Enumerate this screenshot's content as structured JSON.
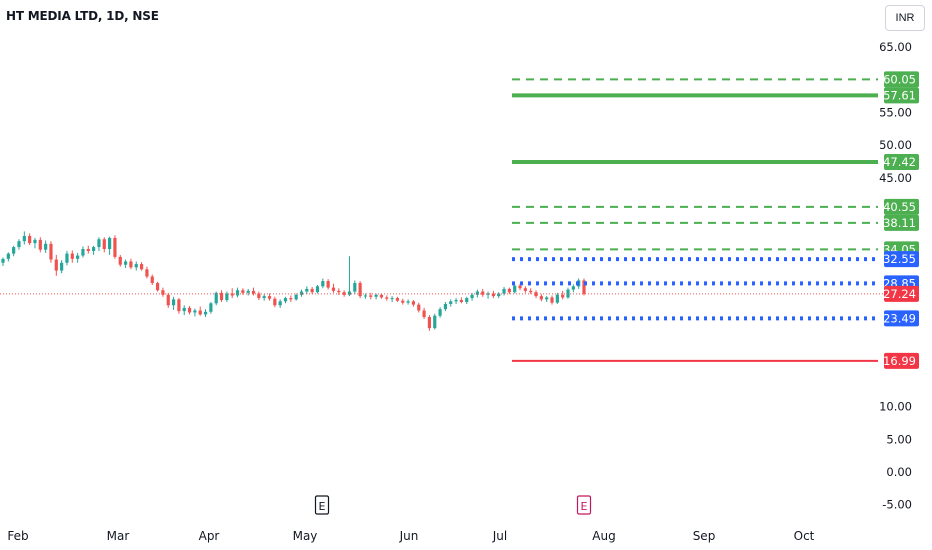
{
  "header": {
    "title": "HT MEDIA LTD, 1D, NSE",
    "currency": "INR"
  },
  "colors": {
    "up": "#26a69a",
    "down": "#ef5350",
    "green": "#4caf50",
    "blue": "#2962ff",
    "red": "#f23645",
    "text": "#131722"
  },
  "chart_data": {
    "type": "candlestick",
    "title": "HT MEDIA LTD, 1D, NSE",
    "ylim": [
      -7,
      68
    ],
    "y_ticks": [
      "65.00",
      "55.00",
      "50.00",
      "45.00",
      "10.00",
      "5.00",
      "0.00",
      "-5.00"
    ],
    "x_ticks": [
      "Feb",
      "Mar",
      "Apr",
      "May",
      "Jun",
      "Jul",
      "Aug",
      "Sep",
      "Oct"
    ],
    "current_price": 27.24,
    "levels": [
      {
        "value": 60.05,
        "label": "60.05",
        "style": "dashed",
        "color": "#4caf50"
      },
      {
        "value": 57.61,
        "label": "57.61",
        "style": "solid",
        "color": "#4caf50"
      },
      {
        "value": 47.42,
        "label": "47.42",
        "style": "solid",
        "color": "#4caf50"
      },
      {
        "value": 40.55,
        "label": "40.55",
        "style": "dashed",
        "color": "#4caf50"
      },
      {
        "value": 38.11,
        "label": "38.11",
        "style": "dashed",
        "color": "#4caf50"
      },
      {
        "value": 34.05,
        "label": "34.05",
        "style": "dashed",
        "color": "#4caf50"
      },
      {
        "value": 32.55,
        "label": "32.55",
        "style": "dotted",
        "color": "#2962ff"
      },
      {
        "value": 28.85,
        "label": "28.85",
        "style": "dotted",
        "color": "#2962ff"
      },
      {
        "value": 23.49,
        "label": "23.49",
        "style": "dotted",
        "color": "#2962ff"
      },
      {
        "value": 16.99,
        "label": "16.99",
        "style": "solid",
        "color": "#f23645"
      }
    ],
    "events": [
      {
        "label": "E",
        "date": "May",
        "color": "#131722"
      },
      {
        "label": "E",
        "date": "Jul",
        "color": "#c2185b"
      }
    ],
    "candles": [
      [
        32.0,
        32.8,
        31.5,
        32.6
      ],
      [
        32.6,
        33.6,
        32.2,
        33.4
      ],
      [
        33.4,
        34.6,
        33.0,
        34.4
      ],
      [
        34.4,
        35.6,
        34.0,
        35.3
      ],
      [
        35.3,
        36.8,
        34.8,
        36.1
      ],
      [
        36.1,
        36.5,
        34.7,
        35.0
      ],
      [
        35.0,
        35.8,
        34.2,
        35.5
      ],
      [
        35.5,
        35.9,
        33.6,
        34.0
      ],
      [
        34.0,
        35.4,
        33.5,
        34.9
      ],
      [
        34.9,
        35.3,
        32.0,
        32.5
      ],
      [
        32.5,
        33.2,
        30.0,
        30.8
      ],
      [
        30.8,
        32.4,
        30.4,
        32.0
      ],
      [
        32.0,
        33.8,
        31.6,
        33.4
      ],
      [
        33.4,
        33.9,
        32.0,
        32.6
      ],
      [
        32.6,
        33.5,
        32.0,
        33.1
      ],
      [
        33.1,
        34.5,
        32.8,
        34.1
      ],
      [
        34.1,
        34.6,
        33.4,
        33.8
      ],
      [
        33.8,
        34.6,
        33.2,
        34.4
      ],
      [
        34.4,
        35.9,
        33.8,
        35.6
      ],
      [
        35.6,
        35.9,
        33.6,
        34.1
      ],
      [
        34.1,
        36.0,
        33.2,
        35.8
      ],
      [
        35.8,
        36.2,
        32.6,
        32.9
      ],
      [
        32.9,
        33.2,
        31.4,
        31.7
      ],
      [
        31.7,
        32.5,
        31.2,
        32.2
      ],
      [
        32.2,
        32.6,
        31.0,
        31.3
      ],
      [
        31.3,
        32.2,
        30.8,
        31.8
      ],
      [
        31.8,
        32.1,
        30.8,
        31.0
      ],
      [
        31.0,
        31.4,
        29.6,
        29.9
      ],
      [
        29.9,
        30.2,
        28.6,
        28.9
      ],
      [
        28.9,
        29.1,
        27.6,
        27.8
      ],
      [
        27.8,
        28.2,
        26.8,
        27.1
      ],
      [
        27.1,
        27.4,
        25.1,
        25.5
      ],
      [
        25.5,
        26.8,
        24.8,
        26.4
      ],
      [
        26.4,
        26.6,
        24.2,
        24.6
      ],
      [
        24.6,
        25.5,
        24.0,
        25.1
      ],
      [
        25.1,
        25.4,
        24.1,
        24.4
      ],
      [
        24.4,
        25.0,
        23.8,
        24.7
      ],
      [
        24.7,
        25.3,
        23.9,
        24.1
      ],
      [
        24.1,
        24.9,
        23.7,
        24.5
      ],
      [
        24.5,
        26.0,
        24.2,
        25.8
      ],
      [
        25.8,
        27.6,
        25.5,
        27.4
      ],
      [
        27.4,
        27.8,
        26.0,
        26.3
      ],
      [
        26.3,
        27.6,
        26.0,
        27.3
      ],
      [
        27.3,
        28.1,
        26.6,
        27.0
      ],
      [
        27.0,
        28.2,
        26.7,
        27.8
      ],
      [
        27.8,
        28.1,
        27.1,
        27.4
      ],
      [
        27.4,
        28.0,
        27.0,
        27.7
      ],
      [
        27.7,
        28.2,
        27.0,
        27.3
      ],
      [
        27.3,
        27.6,
        26.3,
        26.6
      ],
      [
        26.6,
        27.2,
        26.2,
        26.9
      ],
      [
        26.9,
        27.3,
        26.2,
        26.5
      ],
      [
        26.5,
        26.8,
        25.2,
        25.5
      ],
      [
        25.5,
        26.4,
        25.1,
        26.1
      ],
      [
        26.1,
        26.8,
        25.8,
        26.6
      ],
      [
        26.6,
        27.0,
        26.0,
        26.4
      ],
      [
        26.4,
        27.3,
        26.2,
        27.1
      ],
      [
        27.1,
        27.9,
        26.8,
        27.6
      ],
      [
        27.6,
        28.4,
        27.2,
        28.0
      ],
      [
        28.0,
        28.3,
        27.2,
        27.5
      ],
      [
        27.5,
        28.6,
        27.3,
        28.4
      ],
      [
        28.4,
        29.6,
        28.1,
        29.2
      ],
      [
        29.2,
        29.5,
        27.9,
        28.2
      ],
      [
        28.2,
        28.8,
        27.4,
        27.7
      ],
      [
        27.7,
        28.1,
        27.1,
        27.5
      ],
      [
        27.5,
        27.8,
        26.8,
        27.1
      ],
      [
        27.1,
        33.0,
        26.9,
        27.6
      ],
      [
        27.6,
        29.3,
        27.2,
        28.9
      ],
      [
        28.9,
        29.2,
        26.6,
        26.9
      ],
      [
        26.9,
        27.3,
        26.5,
        27.0
      ],
      [
        27.0,
        27.4,
        26.4,
        26.8
      ],
      [
        26.8,
        27.3,
        26.4,
        27.1
      ],
      [
        27.1,
        27.3,
        26.5,
        26.7
      ],
      [
        26.7,
        27.0,
        26.2,
        26.5
      ],
      [
        26.5,
        26.9,
        26.0,
        26.6
      ],
      [
        26.6,
        26.8,
        26.0,
        26.2
      ],
      [
        26.2,
        26.5,
        25.6,
        25.9
      ],
      [
        25.9,
        26.4,
        25.6,
        26.1
      ],
      [
        26.1,
        26.3,
        25.3,
        25.6
      ],
      [
        25.6,
        25.9,
        24.4,
        24.7
      ],
      [
        24.7,
        25.1,
        23.4,
        23.7
      ],
      [
        23.7,
        24.0,
        21.6,
        22.0
      ],
      [
        22.0,
        24.2,
        21.8,
        23.9
      ],
      [
        23.9,
        25.2,
        23.6,
        24.9
      ],
      [
        24.9,
        26.0,
        24.6,
        25.7
      ],
      [
        25.7,
        26.4,
        25.3,
        26.1
      ],
      [
        26.1,
        26.6,
        25.7,
        26.3
      ],
      [
        26.3,
        26.7,
        25.8,
        26.0
      ],
      [
        26.0,
        26.8,
        25.7,
        26.6
      ],
      [
        26.6,
        27.4,
        26.2,
        27.1
      ],
      [
        27.1,
        27.9,
        26.7,
        27.6
      ],
      [
        27.6,
        28.0,
        26.8,
        27.1
      ],
      [
        27.1,
        27.6,
        26.5,
        27.3
      ],
      [
        27.3,
        27.7,
        26.6,
        26.9
      ],
      [
        26.9,
        27.5,
        26.6,
        27.3
      ],
      [
        27.3,
        28.3,
        27.0,
        28.0
      ],
      [
        28.0,
        28.2,
        27.2,
        27.5
      ],
      [
        27.5,
        28.7,
        27.3,
        28.5
      ],
      [
        28.5,
        28.8,
        27.8,
        28.1
      ],
      [
        28.1,
        28.4,
        27.4,
        27.7
      ],
      [
        27.7,
        28.1,
        27.2,
        27.5
      ],
      [
        27.5,
        27.8,
        26.6,
        26.9
      ],
      [
        26.9,
        27.2,
        26.1,
        26.4
      ],
      [
        26.4,
        26.9,
        26.0,
        26.7
      ],
      [
        26.7,
        27.0,
        25.6,
        25.9
      ],
      [
        25.9,
        27.4,
        25.7,
        27.1
      ],
      [
        27.1,
        27.7,
        26.4,
        26.7
      ],
      [
        26.7,
        28.2,
        26.5,
        27.9
      ],
      [
        27.9,
        28.7,
        27.5,
        28.4
      ],
      [
        28.4,
        29.6,
        28.0,
        29.3
      ],
      [
        29.3,
        29.6,
        27.0,
        27.24
      ]
    ]
  }
}
